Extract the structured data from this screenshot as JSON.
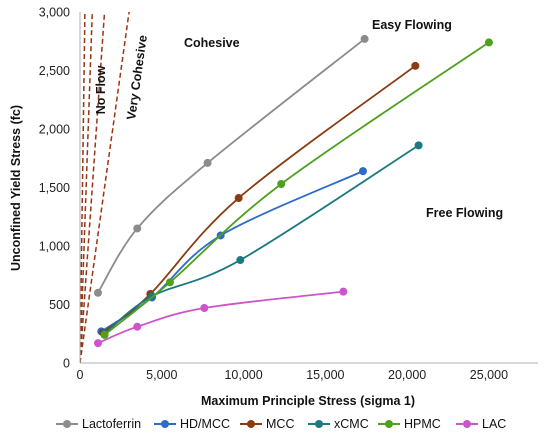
{
  "chart_data": {
    "type": "line",
    "title": "",
    "xlabel": "Maximum Principle Stress (sigma 1)",
    "ylabel": "Unconfined Yield Stress (fc)",
    "xlim": [
      0,
      28000
    ],
    "ylim": [
      0,
      3000
    ],
    "x_ticks": [
      "0",
      "5,000",
      "10,000",
      "15,000",
      "20,000",
      "25,000"
    ],
    "y_ticks": [
      "0",
      "500",
      "1,000",
      "1,500",
      "2,000",
      "2,500",
      "3,000"
    ],
    "grid": false,
    "legend_position": "bottom",
    "series": [
      {
        "name": "Lactoferrin",
        "color": "#8c8c8c",
        "x": [
          1100,
          3500,
          7800,
          17400
        ],
        "y": [
          600,
          1150,
          1710,
          2770
        ]
      },
      {
        "name": "HD/MCC",
        "color": "#2e6bc6",
        "x": [
          1300,
          4400,
          8600,
          17300
        ],
        "y": [
          270,
          560,
          1090,
          1640
        ]
      },
      {
        "name": "MCC",
        "color": "#8a3b12",
        "x": [
          1400,
          4300,
          9700,
          20500
        ],
        "y": [
          260,
          590,
          1410,
          2540
        ]
      },
      {
        "name": "xCMC",
        "color": "#1a7a80",
        "x": [
          1500,
          4400,
          9800,
          20700
        ],
        "y": [
          250,
          570,
          880,
          1860
        ]
      },
      {
        "name": "HPMC",
        "color": "#4ea01e",
        "x": [
          1500,
          5500,
          12300,
          25000
        ],
        "y": [
          240,
          690,
          1530,
          2740
        ]
      },
      {
        "name": "LAC",
        "color": "#cc55cc",
        "x": [
          1100,
          3500,
          7600,
          16100
        ],
        "y": [
          170,
          310,
          470,
          610
        ]
      }
    ],
    "flow_lines": {
      "color": "#9a3412",
      "slopes": [
        1,
        2,
        4,
        10
      ]
    },
    "annotations": {
      "no_flow": "No Flow",
      "very_cohesive": "Very Cohesive",
      "cohesive": "Cohesive",
      "easy_flowing": "Easy Flowing",
      "free_flowing": "Free Flowing"
    }
  }
}
